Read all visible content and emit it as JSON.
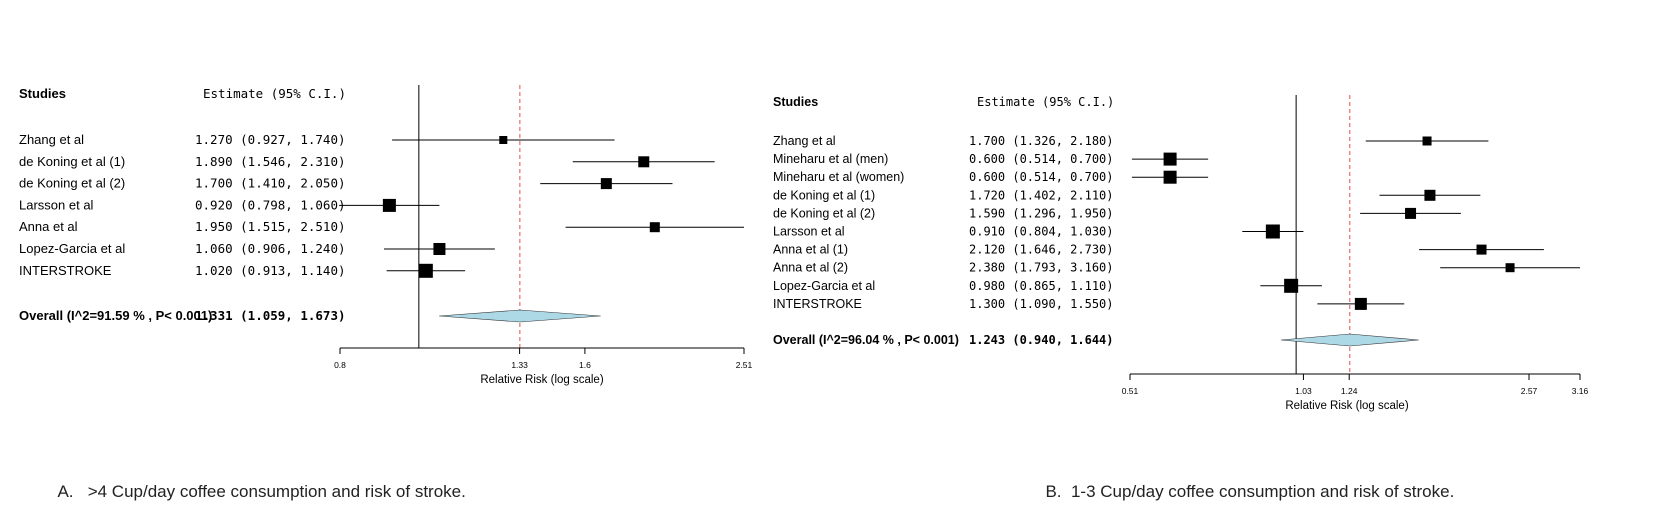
{
  "colors": {
    "ref_line": "#e05050",
    "diamond_fill": "#add8e6",
    "marker": "#000000",
    "text": "#000000"
  },
  "chart_data": [
    {
      "type": "forest",
      "panel": "A",
      "header_studies": "Studies",
      "header_estimate": "Estimate (95% C.I.)",
      "xlabel": "Relative Risk (log scale)",
      "xscale": "log",
      "xlim": [
        0.8,
        2.51
      ],
      "xticks": [
        "0.8",
        "1.33",
        "1.6",
        "2.51"
      ],
      "xtick_values": [
        0.8,
        1.33,
        1.6,
        2.51
      ],
      "null_value": 1.0,
      "pooled_value": 1.331,
      "studies": [
        {
          "name": "Zhang et al",
          "estimate": 1.27,
          "lower": 0.927,
          "upper": 1.74,
          "label": "1.270 (0.927, 1.740)",
          "weight": 8
        },
        {
          "name": "de Koning et al (1)",
          "estimate": 1.89,
          "lower": 1.546,
          "upper": 2.31,
          "label": "1.890 (1.546, 2.310)",
          "weight": 11
        },
        {
          "name": "de Koning et al (2)",
          "estimate": 1.7,
          "lower": 1.41,
          "upper": 2.05,
          "label": "1.700 (1.410, 2.050)",
          "weight": 11
        },
        {
          "name": "Larsson et al",
          "estimate": 0.92,
          "lower": 0.798,
          "upper": 1.06,
          "label": "0.920 (0.798, 1.060)",
          "weight": 13
        },
        {
          "name": "Anna et al",
          "estimate": 1.95,
          "lower": 1.515,
          "upper": 2.51,
          "label": "1.950 (1.515, 2.510)",
          "weight": 10
        },
        {
          "name": "Lopez-Garcia et al",
          "estimate": 1.06,
          "lower": 0.906,
          "upper": 1.24,
          "label": "1.060 (0.906, 1.240)",
          "weight": 12
        },
        {
          "name": "INTERSTROKE",
          "estimate": 1.02,
          "lower": 0.913,
          "upper": 1.14,
          "label": "1.020 (0.913, 1.140)",
          "weight": 14
        }
      ],
      "overall": {
        "name": "Overall (I^2=91.59 % , P< 0.001)",
        "estimate": 1.331,
        "lower": 1.059,
        "upper": 1.673,
        "label": "1.331 (1.059, 1.673)"
      }
    },
    {
      "type": "forest",
      "panel": "B",
      "header_studies": "Studies",
      "header_estimate": "Estimate (95% C.I.)",
      "xlabel": "Relative Risk (log scale)",
      "xscale": "log",
      "xlim": [
        0.51,
        3.16
      ],
      "xticks": [
        "0.51",
        "1.03",
        "1.24",
        "2.57",
        "3.16"
      ],
      "xtick_values": [
        0.51,
        1.03,
        1.24,
        2.57,
        3.16
      ],
      "null_value": 1.0,
      "pooled_value": 1.243,
      "studies": [
        {
          "name": "Zhang et al",
          "estimate": 1.7,
          "lower": 1.326,
          "upper": 2.18,
          "label": "1.700 (1.326, 2.180)",
          "weight": 9
        },
        {
          "name": "Mineharu et al (men)",
          "estimate": 0.6,
          "lower": 0.514,
          "upper": 0.7,
          "label": "0.600 (0.514, 0.700)",
          "weight": 13
        },
        {
          "name": "Mineharu et al (women)",
          "estimate": 0.6,
          "lower": 0.514,
          "upper": 0.7,
          "label": "0.600 (0.514, 0.700)",
          "weight": 13
        },
        {
          "name": "de Koning et al (1)",
          "estimate": 1.72,
          "lower": 1.402,
          "upper": 2.11,
          "label": "1.720 (1.402, 2.110)",
          "weight": 11
        },
        {
          "name": "de Koning et al (2)",
          "estimate": 1.59,
          "lower": 1.296,
          "upper": 1.95,
          "label": "1.590 (1.296, 1.950)",
          "weight": 11
        },
        {
          "name": "Larsson et al",
          "estimate": 0.91,
          "lower": 0.804,
          "upper": 1.03,
          "label": "0.910 (0.804, 1.030)",
          "weight": 14
        },
        {
          "name": "Anna et al (1)",
          "estimate": 2.12,
          "lower": 1.646,
          "upper": 2.73,
          "label": "2.120 (1.646, 2.730)",
          "weight": 10
        },
        {
          "name": "Anna et al (2)",
          "estimate": 2.38,
          "lower": 1.793,
          "upper": 3.16,
          "label": "2.380 (1.793, 3.160)",
          "weight": 9
        },
        {
          "name": "Lopez-Garcia et al",
          "estimate": 0.98,
          "lower": 0.865,
          "upper": 1.11,
          "label": "0.980 (0.865, 1.110)",
          "weight": 14
        },
        {
          "name": "INTERSTROKE",
          "estimate": 1.3,
          "lower": 1.09,
          "upper": 1.55,
          "label": "1.300 (1.090, 1.550)",
          "weight": 12
        }
      ],
      "overall": {
        "name": "Overall (I^2=96.04 % , P< 0.001)",
        "estimate": 1.243,
        "lower": 0.94,
        "upper": 1.644,
        "label": "1.243 (0.940, 1.644)"
      }
    }
  ],
  "captions": {
    "a_label": "A.",
    "a_text": ">4 Cup/day coffee consumption and risk of stroke.",
    "b_label": "B.",
    "b_text": "1-3 Cup/day coffee consumption and risk of stroke."
  }
}
